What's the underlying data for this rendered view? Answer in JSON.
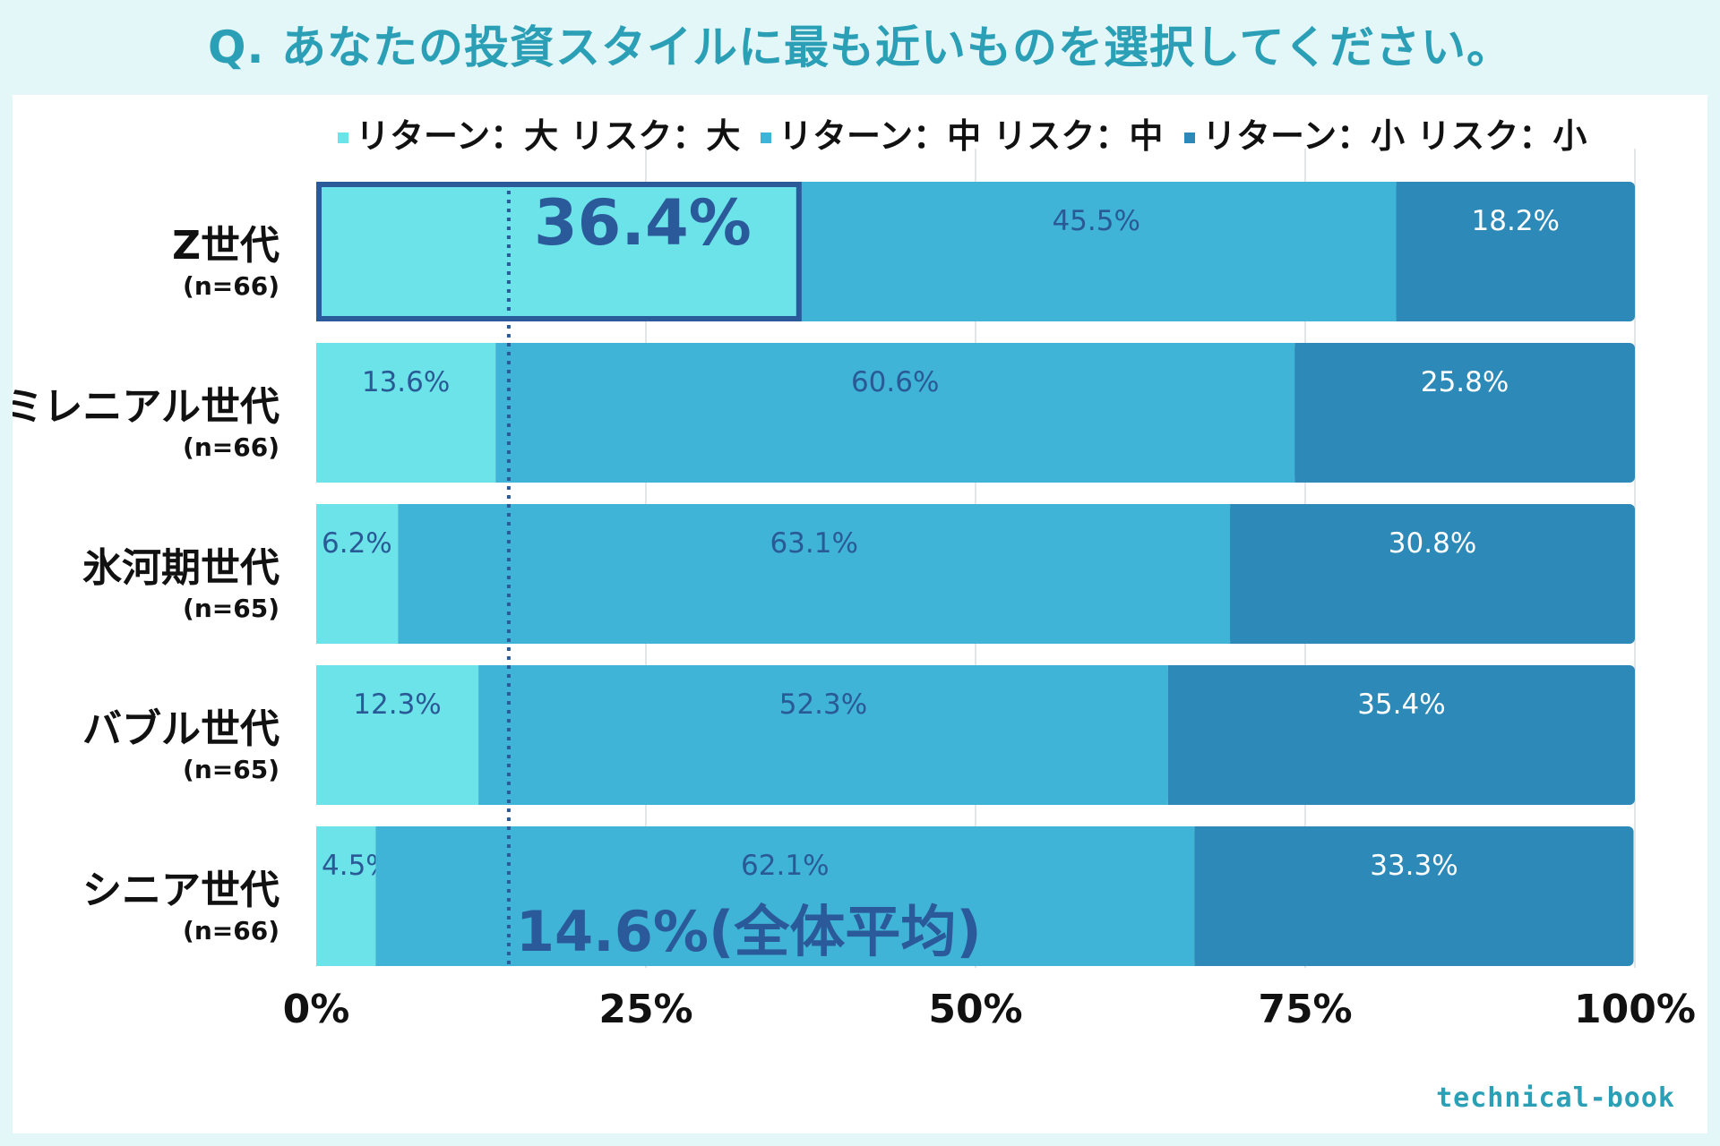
{
  "title": "Q. あなたの投資スタイルに最も近いものを選択してください。",
  "brand": "technical-book",
  "colors": {
    "high": "#6be3e8",
    "mid": "#40b4d6",
    "low": "#2c89b8",
    "highlight": "#2b5a9a",
    "avg_line": "#2b5a9a"
  },
  "chart_data": {
    "type": "bar",
    "orientation": "horizontal",
    "stacked": true,
    "title": "Q. あなたの投資スタイルに最も近いものを選択してください。",
    "categories": [
      "Z世代",
      "ミレニアル世代",
      "氷河期世代",
      "バブル世代",
      "シニア世代"
    ],
    "sample_sizes": [
      "(n=66)",
      "(n=66)",
      "(n=65)",
      "(n=65)",
      "(n=66)"
    ],
    "series": [
      {
        "name": "リターン：大 リスク：大",
        "values": [
          36.4,
          13.6,
          6.2,
          12.3,
          4.5
        ],
        "labels": [
          "36.4%",
          "13.6%",
          "6.2%",
          "12.3%",
          "4.5%"
        ]
      },
      {
        "name": "リターン：中 リスク：中",
        "values": [
          45.5,
          60.6,
          63.1,
          52.3,
          62.1
        ],
        "labels": [
          "45.5%",
          "60.6%",
          "63.1%",
          "52.3%",
          "62.1%"
        ]
      },
      {
        "name": "リターン：小 リスク：小",
        "values": [
          18.2,
          25.8,
          30.8,
          35.4,
          33.3
        ],
        "labels": [
          "18.2%",
          "25.8%",
          "30.8%",
          "35.4%",
          "33.3%"
        ]
      }
    ],
    "xlim": [
      0,
      100
    ],
    "xticks": [
      "0%",
      "25%",
      "50%",
      "75%",
      "100%"
    ],
    "xtick_values": [
      0,
      25,
      50,
      75,
      100
    ],
    "legend_position": "top",
    "highlight": {
      "category": "Z世代",
      "series": "リターン：大 リスク：大",
      "label": "36.4%"
    },
    "average_line": {
      "value": 14.6,
      "label": "14.6%(全体平均)"
    }
  }
}
